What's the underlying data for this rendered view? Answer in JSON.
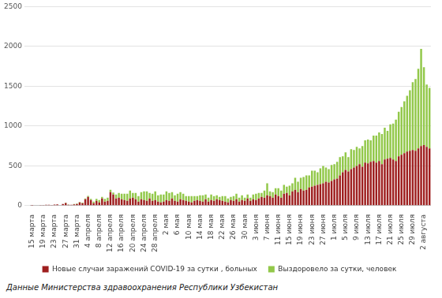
{
  "chart_data": {
    "type": "bar",
    "stacked": true,
    "grid": true,
    "legend": "bottom",
    "source": "Данные Министерства здравоохранения Республики Узбекистан",
    "ylim": [
      0,
      2500
    ],
    "yticks": [
      0,
      500,
      1000,
      1500,
      2000,
      2500
    ],
    "categories": [
      "15 марта",
      null,
      null,
      null,
      "19 марта",
      null,
      null,
      null,
      "23 марта",
      null,
      null,
      null,
      "27 марта",
      null,
      null,
      null,
      "31 марта",
      null,
      null,
      null,
      "4 апреля",
      null,
      null,
      null,
      "8 апреля",
      null,
      null,
      null,
      "12 апреля",
      null,
      null,
      null,
      "16 апреля",
      null,
      null,
      null,
      "20 апреля",
      null,
      null,
      null,
      "24 апреля",
      null,
      null,
      null,
      "28 апреля",
      null,
      null,
      null,
      "2 мая",
      null,
      null,
      null,
      "6 мая",
      null,
      null,
      null,
      "10 мая",
      null,
      null,
      null,
      "14 мая",
      null,
      null,
      null,
      "18 мая",
      null,
      null,
      null,
      "22 мая",
      null,
      null,
      null,
      "26 мая",
      null,
      null,
      null,
      "30 мая",
      null,
      null,
      null,
      "3 июня",
      null,
      null,
      null,
      "7 июня",
      null,
      null,
      null,
      "11 июня",
      null,
      null,
      null,
      "15 июня",
      null,
      null,
      null,
      "19 июня",
      null,
      null,
      null,
      "23 июня",
      null,
      null,
      null,
      "27 июня",
      null,
      null,
      null,
      "1 июля",
      null,
      null,
      null,
      "5 июля",
      null,
      null,
      null,
      "9 июля",
      null,
      null,
      null,
      "13 июля",
      null,
      null,
      null,
      "17 июля",
      null,
      null,
      null,
      "21 июля",
      null,
      null,
      null,
      "25 июля",
      null,
      null,
      null,
      "29 июля",
      null,
      null,
      null,
      "2 августа",
      null,
      null
    ],
    "series": [
      {
        "name": "Новые случаи заражений COVID-19 за сутки , больных",
        "color": "#9e1f1f",
        "values": [
          1,
          0,
          5,
          4,
          3,
          10,
          10,
          3,
          13,
          15,
          5,
          21,
          33,
          10,
          10,
          15,
          20,
          40,
          30,
          80,
          110,
          70,
          30,
          60,
          40,
          90,
          50,
          60,
          170,
          140,
          90,
          100,
          80,
          70,
          60,
          90,
          100,
          80,
          50,
          80,
          70,
          60,
          90,
          60,
          70,
          50,
          40,
          50,
          70,
          60,
          90,
          60,
          50,
          80,
          70,
          60,
          50,
          40,
          60,
          70,
          60,
          50,
          80,
          50,
          70,
          60,
          80,
          70,
          60,
          50,
          40,
          70,
          60,
          80,
          50,
          70,
          60,
          90,
          60,
          80,
          70,
          90,
          110,
          100,
          130,
          120,
          100,
          140,
          120,
          100,
          150,
          160,
          130,
          180,
          200,
          170,
          210,
          190,
          200,
          230,
          240,
          250,
          260,
          270,
          280,
          300,
          290,
          310,
          330,
          340,
          380,
          420,
          450,
          430,
          460,
          480,
          500,
          520,
          490,
          540,
          530,
          550,
          560,
          540,
          560,
          520,
          580,
          590,
          600,
          580,
          560,
          620,
          640,
          660,
          680,
          690,
          700,
          690,
          720,
          750,
          760,
          740,
          720
        ]
      },
      {
        "name": "Выздоровело за сутки, человек",
        "color": "#92c84a",
        "values": [
          0,
          0,
          0,
          0,
          0,
          0,
          0,
          0,
          0,
          0,
          2,
          0,
          5,
          3,
          2,
          5,
          7,
          5,
          8,
          10,
          12,
          15,
          20,
          25,
          30,
          20,
          35,
          40,
          30,
          25,
          50,
          60,
          70,
          80,
          90,
          100,
          60,
          80,
          70,
          90,
          110,
          120,
          70,
          90,
          110,
          80,
          100,
          90,
          110,
          100,
          80,
          70,
          100,
          90,
          80,
          60,
          70,
          80,
          60,
          50,
          70,
          80,
          60,
          50,
          70,
          60,
          50,
          40,
          60,
          70,
          50,
          40,
          60,
          70,
          50,
          60,
          40,
          50,
          40,
          60,
          80,
          70,
          50,
          90,
          150,
          60,
          70,
          80,
          100,
          90,
          110,
          80,
          120,
          100,
          150,
          130,
          140,
          170,
          180,
          150,
          200,
          190,
          160,
          200,
          220,
          180,
          170,
          200,
          190,
          210,
          230,
          200,
          220,
          180,
          250,
          220,
          240,
          200,
          260,
          280,
          300,
          270,
          320,
          340,
          360,
          380,
          400,
          350,
          420,
          450,
          520,
          560,
          600,
          650,
          700,
          760,
          850,
          900,
          1000,
          1220,
          980,
          780,
          760
        ]
      }
    ]
  }
}
